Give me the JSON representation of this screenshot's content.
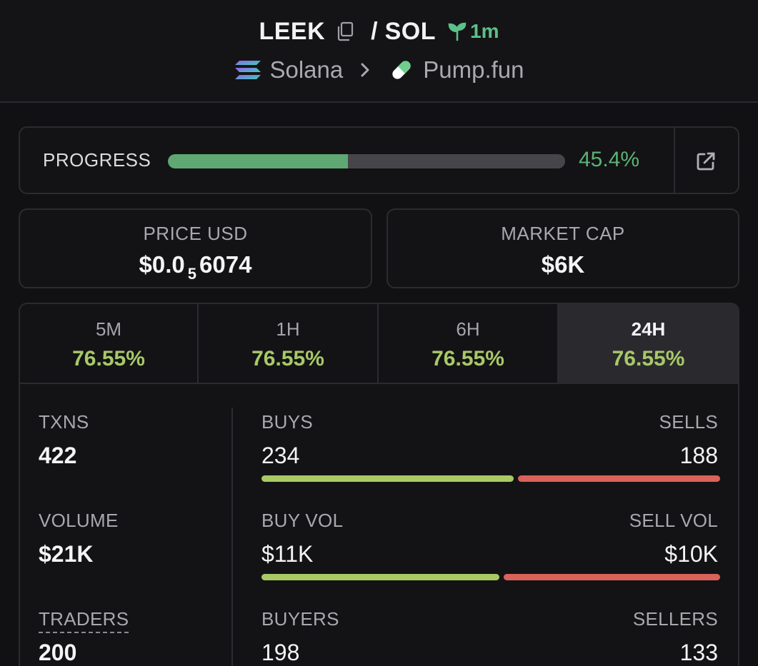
{
  "header": {
    "token_symbol": "LEEK",
    "separator": "/",
    "quote_symbol": "SOL",
    "age": "1m",
    "chain": "Solana",
    "dex": "Pump.fun"
  },
  "progress": {
    "label": "PROGRESS",
    "value_text": "45.4%",
    "fraction": 0.454
  },
  "price": {
    "label": "PRICE USD",
    "prefix": "$0.0",
    "zeros_subscript": "5",
    "digits": "6074"
  },
  "market_cap": {
    "label": "MARKET CAP",
    "value": "$6K"
  },
  "periods": [
    {
      "name": "5M",
      "change": "76.55%",
      "active": false
    },
    {
      "name": "1H",
      "change": "76.55%",
      "active": false
    },
    {
      "name": "6H",
      "change": "76.55%",
      "active": false
    },
    {
      "name": "24H",
      "change": "76.55%",
      "active": true
    }
  ],
  "stats": {
    "txns": {
      "label": "TXNS",
      "value": "422"
    },
    "volume": {
      "label": "VOLUME",
      "value": "$21K"
    },
    "traders": {
      "label": "TRADERS",
      "value": "200"
    },
    "buys": {
      "label": "BUYS",
      "value": "234",
      "fraction": 0.5545
    },
    "sells": {
      "label": "SELLS",
      "value": "188"
    },
    "buy_vol": {
      "label": "BUY VOL",
      "value": "$11K",
      "fraction": 0.5238
    },
    "sell_vol": {
      "label": "SELL VOL",
      "value": "$10K"
    },
    "buyers": {
      "label": "BUYERS",
      "value": "198"
    },
    "sellers": {
      "label": "SELLERS",
      "value": "133"
    }
  },
  "colors": {
    "accent_green": "#5cb274",
    "change_green": "#a8c86a",
    "bar_green": "#a9c964",
    "bar_red": "#d9625a"
  }
}
